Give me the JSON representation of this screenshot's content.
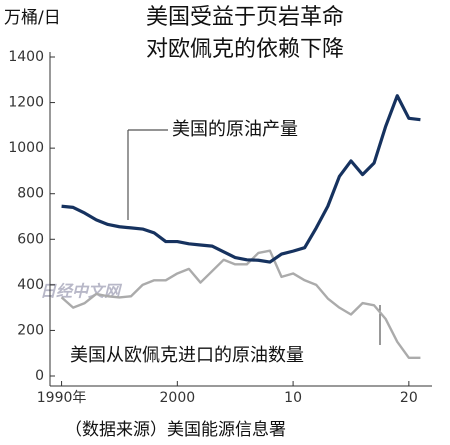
{
  "chart_data": {
    "type": "line",
    "title": "美国受益于页岩革命",
    "subtitle": "对欧佩克的依赖下降",
    "y_axis_label": "万桶/日",
    "source": "（数据来源）美国能源信息署",
    "watermark": "日经中文网",
    "x": [
      1990,
      1991,
      1992,
      1993,
      1994,
      1995,
      1996,
      1997,
      1998,
      1999,
      2000,
      2001,
      2002,
      2003,
      2004,
      2005,
      2006,
      2007,
      2008,
      2009,
      2010,
      2011,
      2012,
      2013,
      2014,
      2015,
      2016,
      2017,
      2018,
      2019,
      2020,
      2021
    ],
    "series": [
      {
        "name": "美国的原油产量",
        "color": "#16325f",
        "values": [
          745,
          740,
          715,
          685,
          665,
          655,
          650,
          645,
          628,
          590,
          590,
          580,
          575,
          570,
          545,
          520,
          510,
          508,
          500,
          535,
          548,
          563,
          650,
          745,
          876,
          944,
          884,
          935,
          1096,
          1230,
          1131,
          1125
        ]
      },
      {
        "name": "美国从欧佩克进口的原油数量",
        "color": "#ababab",
        "values": [
          345,
          300,
          320,
          360,
          350,
          345,
          350,
          400,
          420,
          420,
          450,
          470,
          410,
          460,
          510,
          490,
          490,
          540,
          550,
          435,
          450,
          420,
          400,
          340,
          300,
          270,
          320,
          310,
          250,
          150,
          80,
          80
        ]
      }
    ],
    "xlim": [
      1989,
      2022
    ],
    "ylim": [
      0,
      1400
    ],
    "xticks": [
      {
        "value": 1990,
        "label": "1990年"
      },
      2000,
      {
        "value": 2010,
        "label": "10"
      },
      {
        "value": 2020,
        "label": "20"
      }
    ],
    "yticks": [
      0,
      200,
      400,
      600,
      800,
      1000,
      1200,
      1400
    ]
  }
}
